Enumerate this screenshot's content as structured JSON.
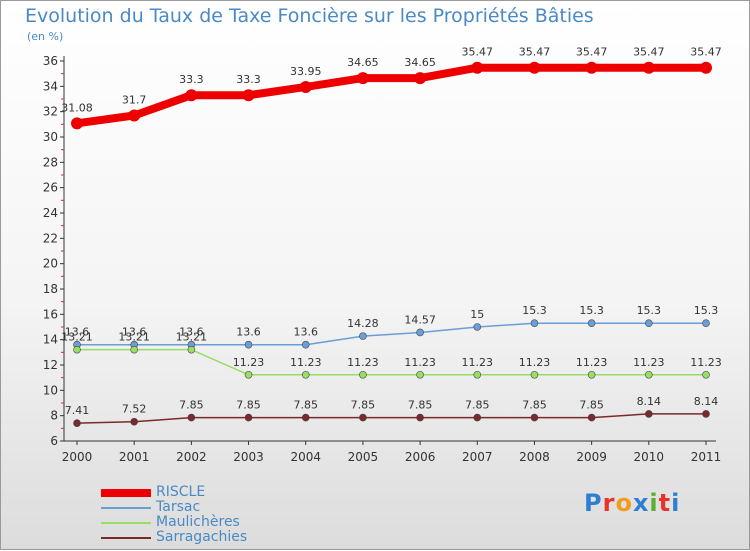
{
  "title": "Evolution du Taux de Taxe Foncière sur les Propriétés Bâties",
  "subtitle": "(en %)",
  "logo": {
    "text": "Proxiti",
    "colors": [
      "#2e7fd1",
      "#e8332a",
      "#f29c1f",
      "#2e7fd1",
      "#5bb030",
      "#e8332a",
      "#2e7fd1"
    ]
  },
  "chart_data": {
    "type": "line",
    "x": [
      "2000",
      "2001",
      "2002",
      "2003",
      "2004",
      "2005",
      "2006",
      "2007",
      "2008",
      "2009",
      "2010",
      "2011"
    ],
    "ylim": [
      6,
      36
    ],
    "yticks": [
      6,
      8,
      10,
      12,
      14,
      16,
      18,
      20,
      22,
      24,
      26,
      28,
      30,
      32,
      34,
      36
    ],
    "grid": false,
    "legend": "bottom-left",
    "series": [
      {
        "name": "RISCLE",
        "color": "#ee0000",
        "width": 8,
        "marker": 6,
        "values": [
          31.08,
          31.7,
          33.3,
          33.3,
          33.95,
          34.65,
          34.65,
          35.47,
          35.47,
          35.47,
          35.47,
          35.47
        ],
        "labels": [
          "31.08",
          "31.7",
          "33.3",
          "33.3",
          "33.95",
          "34.65",
          "34.65",
          "35.47",
          "35.47",
          "35.47",
          "35.47",
          "35.47"
        ]
      },
      {
        "name": "Tarsac",
        "color": "#6a9ed6",
        "width": 1.5,
        "marker": 3.5,
        "values": [
          13.6,
          13.6,
          13.6,
          13.6,
          13.6,
          14.28,
          14.57,
          15,
          15.3,
          15.3,
          15.3,
          15.3
        ],
        "labels": [
          "13.6",
          "13.6",
          "13.6",
          "13.6",
          "13.6",
          "14.28",
          "14.57",
          "15",
          "15.3",
          "15.3",
          "15.3",
          "15.3"
        ]
      },
      {
        "name": "Maulichères",
        "color": "#99dd66",
        "width": 1.5,
        "marker": 3.5,
        "values": [
          13.21,
          13.21,
          13.21,
          11.23,
          11.23,
          11.23,
          11.23,
          11.23,
          11.23,
          11.23,
          11.23,
          11.23
        ],
        "labels": [
          "13.21",
          "13.21",
          "13.21",
          "11.23",
          "11.23",
          "11.23",
          "11.23",
          "11.23",
          "11.23",
          "11.23",
          "11.23",
          "11.23"
        ]
      },
      {
        "name": "Sarragachies",
        "color": "#7a2a2a",
        "width": 1.5,
        "marker": 3.5,
        "values": [
          7.41,
          7.52,
          7.85,
          7.85,
          7.85,
          7.85,
          7.85,
          7.85,
          7.85,
          7.85,
          8.14,
          8.14
        ],
        "labels": [
          "7.41",
          "7.52",
          "7.85",
          "7.85",
          "7.85",
          "7.85",
          "7.85",
          "7.85",
          "7.85",
          "7.85",
          "8.14",
          "8.14"
        ]
      }
    ]
  }
}
